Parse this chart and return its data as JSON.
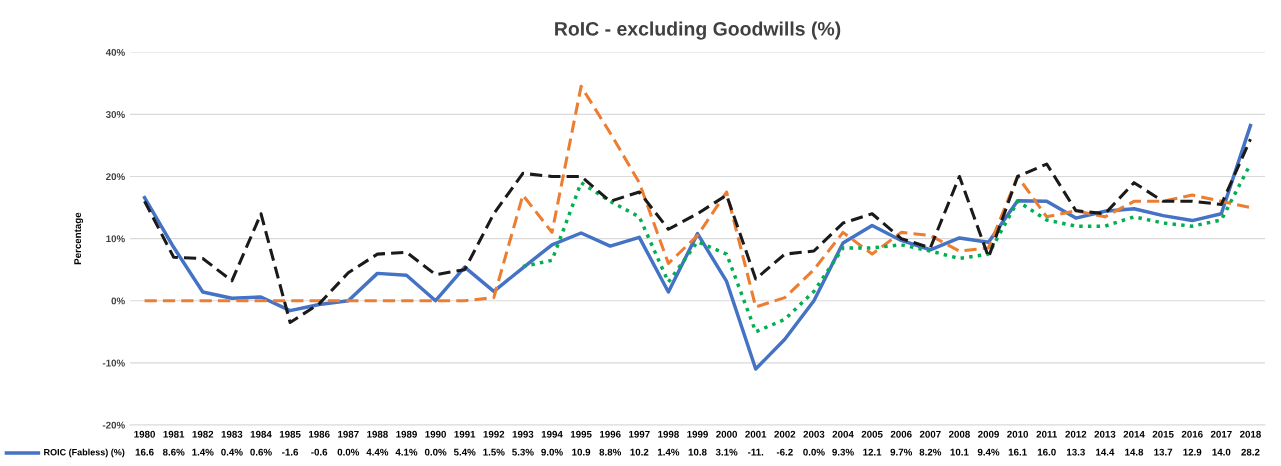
{
  "chart_data": {
    "type": "line",
    "title": "RoIC - excluding Goodwills (%)",
    "ylabel": "Percentage",
    "categories": [
      "1980",
      "1981",
      "1982",
      "1983",
      "1984",
      "1985",
      "1986",
      "1987",
      "1988",
      "1989",
      "1990",
      "1991",
      "1992",
      "1993",
      "1994",
      "1995",
      "1996",
      "1997",
      "1998",
      "1999",
      "2000",
      "2001",
      "2002",
      "2003",
      "2004",
      "2005",
      "2006",
      "2007",
      "2008",
      "2009",
      "2010",
      "2011",
      "2012",
      "2013",
      "2014",
      "2015",
      "2016",
      "2017",
      "2018"
    ],
    "series": [
      {
        "name": "ROIC (Fabless) (%)",
        "color": "#4472c4",
        "line_style": "solid",
        "values": [
          16.6,
          8.6,
          1.4,
          0.4,
          0.6,
          -1.6,
          -0.6,
          0.0,
          4.4,
          4.1,
          0.0,
          5.4,
          1.5,
          5.3,
          9.0,
          10.9,
          8.8,
          10.2,
          1.4,
          10.8,
          3.1,
          -11,
          -6.2,
          0.0,
          9.3,
          12.1,
          9.7,
          8.2,
          10.1,
          9.4,
          16.1,
          16.0,
          13.3,
          14.4,
          14.8,
          13.7,
          12.9,
          14.0,
          28.2
        ],
        "value_labels": [
          "16.6",
          "8.6%",
          "1.4%",
          "0.4%",
          "0.6%",
          "-1.6",
          "-0.6",
          "0.0%",
          "4.4%",
          "4.1%",
          "0.0%",
          "5.4%",
          "1.5%",
          "5.3%",
          "9.0%",
          "10.9",
          "8.8%",
          "10.2",
          "1.4%",
          "10.8",
          "3.1%",
          "-11.",
          "-6.2",
          "0.0%",
          "9.3%",
          "12.1",
          "9.7%",
          "8.2%",
          "10.1",
          "9.4%",
          "16.1",
          "16.0",
          "13.3",
          "14.4",
          "14.8",
          "13.7",
          "12.9",
          "14.0",
          "28.2"
        ]
      },
      {
        "color": "#ed7d31",
        "line_style": "dashed",
        "values": [
          0,
          0,
          0,
          0,
          0,
          0,
          0,
          0,
          0,
          0,
          0,
          0,
          0.5,
          17,
          11,
          34.5,
          27,
          19,
          6,
          10.5,
          17.5,
          -1,
          0.5,
          5,
          11,
          7.5,
          11,
          10.5,
          8,
          8.5,
          20,
          13.5,
          14.5,
          13.5,
          16,
          16,
          17,
          16,
          15
        ]
      },
      {
        "color": "#00b050",
        "line_style": "dotted",
        "values": [
          null,
          null,
          null,
          null,
          null,
          null,
          null,
          null,
          null,
          null,
          null,
          null,
          null,
          5.5,
          6.5,
          19,
          16,
          13.5,
          3,
          9.5,
          7.5,
          -5,
          -3,
          1.5,
          8.5,
          8.5,
          9,
          8,
          6.8,
          7.5,
          16,
          13,
          12,
          12,
          13.5,
          12.5,
          12,
          13,
          22
        ]
      },
      {
        "color": "#1a1a1a",
        "line_style": "dashed",
        "values": [
          16,
          7,
          6.8,
          3.2,
          14,
          -3.5,
          -0.5,
          4.5,
          7.5,
          7.8,
          4.2,
          5,
          14,
          20.5,
          20,
          20,
          16,
          17.5,
          11.5,
          14,
          17,
          3.5,
          7.5,
          8,
          12.5,
          14,
          10,
          8.5,
          20,
          7,
          20,
          22,
          14.5,
          14,
          19,
          16,
          16,
          15.5,
          26
        ]
      }
    ],
    "ylim": [
      -20,
      40
    ],
    "yticks": [
      {
        "value": -20,
        "label": "-20%"
      },
      {
        "value": -10,
        "label": "-10%"
      },
      {
        "value": 0,
        "label": "0%"
      },
      {
        "value": 10,
        "label": "10%"
      },
      {
        "value": 20,
        "label": "20%"
      },
      {
        "value": 30,
        "label": "30%"
      },
      {
        "value": 40,
        "label": "40%"
      }
    ],
    "grid": "y",
    "legend": "bottom left"
  }
}
